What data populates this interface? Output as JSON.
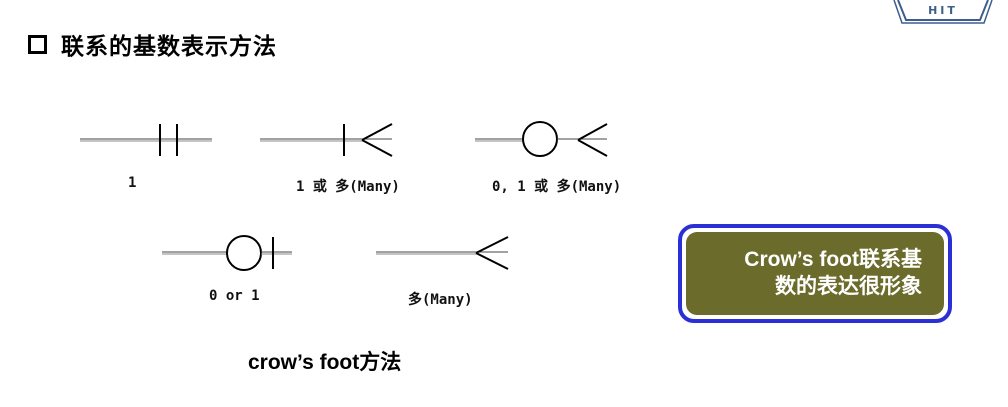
{
  "title": "联系的基数表示方法",
  "labels": {
    "one": "1",
    "one_or_many": "1 或 多(Many)",
    "zero_one_or_many": "0, 1 或 多(Many)",
    "zero_or_one": "0 or 1",
    "many": "多(Many)"
  },
  "callout": {
    "line1": "Crow’s foot联系基",
    "line2": "数的表达很形象"
  },
  "caption": "crow’s foot方法",
  "logo_text": "HIT",
  "colors": {
    "callout_border": "#2b2fd6",
    "callout_fill": "#6b6b2c",
    "callout_text": "#ffffff"
  }
}
